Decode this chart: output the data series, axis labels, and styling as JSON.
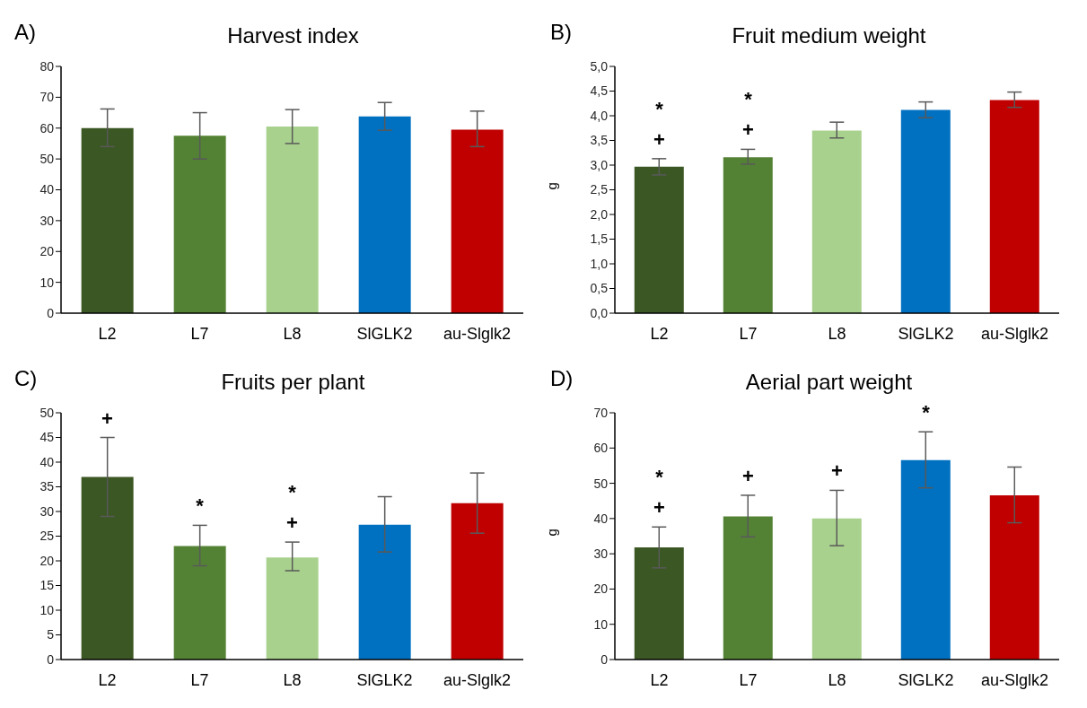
{
  "chart_data": [
    {
      "type": "bar",
      "title": "Harvest index",
      "categories": [
        "L2",
        "L7",
        "L8",
        "SlGLK2",
        "au-Slglk2"
      ],
      "values": [
        60,
        57.5,
        60.5,
        63.8,
        59.5
      ],
      "errors": [
        [
          54,
          66.2
        ],
        [
          50,
          65
        ],
        [
          55,
          66
        ],
        [
          59.3,
          68.3
        ],
        [
          54,
          65.5
        ]
      ],
      "colors": [
        "#3b5724",
        "#548235",
        "#a9d18e",
        "#0070c0",
        "#c00000"
      ],
      "ylim": [
        0,
        80
      ],
      "yticks": [
        0,
        10,
        20,
        30,
        40,
        50,
        60,
        70,
        80
      ],
      "annotations": [
        "A)"
      ]
    },
    {
      "type": "bar",
      "title": "Fruit medium weight",
      "ylabel": "g",
      "categories": [
        "L2",
        "L7",
        "L8",
        "SlGLK2",
        "au-Slglk2"
      ],
      "values": [
        2.97,
        3.16,
        3.7,
        4.12,
        4.32
      ],
      "errors": [
        [
          2.8,
          3.13
        ],
        [
          3.02,
          3.32
        ],
        [
          3.55,
          3.87
        ],
        [
          3.96,
          4.28
        ],
        [
          4.17,
          4.48
        ]
      ],
      "colors": [
        "#3b5724",
        "#548235",
        "#a9d18e",
        "#0070c0",
        "#c00000"
      ],
      "ylim": [
        0,
        5
      ],
      "yticks": [
        {
          "value": 0,
          "label": "0,0"
        },
        {
          "value": 0.5,
          "label": "0,5"
        },
        {
          "value": 1,
          "label": "1,0"
        },
        {
          "value": 1.5,
          "label": "1,5"
        },
        {
          "value": 2,
          "label": "2,0"
        },
        {
          "value": 2.5,
          "label": "2,5"
        },
        {
          "value": 3,
          "label": "3,0"
        },
        {
          "value": 3.5,
          "label": "3,5"
        },
        {
          "value": 4,
          "label": "4,0"
        },
        {
          "value": 4.5,
          "label": "4,5"
        },
        {
          "value": 5,
          "label": "5,0"
        }
      ],
      "annotations": [
        "B)",
        "+",
        "*",
        "+",
        "*"
      ]
    },
    {
      "type": "bar",
      "title": "Fruits per plant",
      "categories": [
        "L2",
        "L7",
        "L8",
        "SlGLK2",
        "au-Slglk2"
      ],
      "values": [
        37,
        23,
        20.7,
        27.3,
        31.7
      ],
      "errors": [
        [
          29,
          45
        ],
        [
          19,
          27.2
        ],
        [
          18,
          23.8
        ],
        [
          21.8,
          33
        ],
        [
          25.6,
          37.8
        ]
      ],
      "colors": [
        "#3b5724",
        "#548235",
        "#a9d18e",
        "#0070c0",
        "#c00000"
      ],
      "ylim": [
        0,
        50
      ],
      "yticks": [
        0,
        5,
        10,
        15,
        20,
        25,
        30,
        35,
        40,
        45,
        50
      ],
      "annotations": [
        "C)",
        "+",
        "*",
        "+",
        "*"
      ]
    },
    {
      "type": "bar",
      "title": "Aerial part weight",
      "ylabel": "g",
      "categories": [
        "L2",
        "L7",
        "L8",
        "SlGLK2",
        "au-Slglk2"
      ],
      "values": [
        31.8,
        40.6,
        40,
        56.6,
        46.6
      ],
      "errors": [
        [
          26,
          37.6
        ],
        [
          34.8,
          46.6
        ],
        [
          32.3,
          48
        ],
        [
          48.7,
          64.6
        ],
        [
          38.8,
          54.6
        ]
      ],
      "colors": [
        "#3b5724",
        "#548235",
        "#a9d18e",
        "#0070c0",
        "#c00000"
      ],
      "ylim": [
        0,
        70
      ],
      "yticks": [
        0,
        10,
        20,
        30,
        40,
        50,
        60,
        70
      ],
      "annotations": [
        "D)",
        "+",
        "*",
        "+",
        "+",
        "*"
      ]
    }
  ]
}
